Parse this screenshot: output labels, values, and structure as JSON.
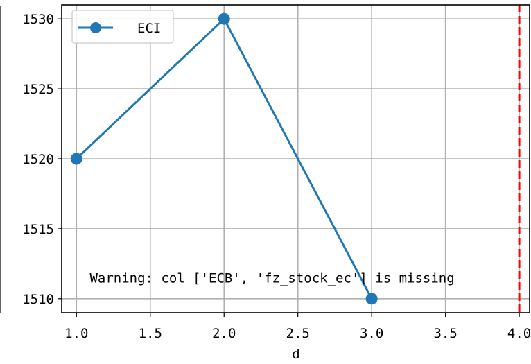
{
  "chart_data": {
    "type": "line",
    "title": "",
    "xlabel": "d",
    "ylabel": "",
    "x": [
      1.0,
      2.0,
      3.0
    ],
    "series": [
      {
        "name": "ECI",
        "values": [
          1520,
          1530,
          1510
        ],
        "color": "#1f77b4",
        "marker": "circle"
      }
    ],
    "xlim": [
      0.9,
      4.07
    ],
    "ylim": [
      1509.0,
      1531.0
    ],
    "xticks": [
      1.0,
      1.5,
      2.0,
      2.5,
      3.0,
      3.5,
      4.0
    ],
    "xtick_labels": [
      "1.0",
      "1.5",
      "2.0",
      "2.5",
      "3.0",
      "3.5",
      "4.0"
    ],
    "yticks": [
      1510,
      1515,
      1520,
      1525,
      1530
    ],
    "ytick_labels": [
      "1510",
      "1515",
      "1520",
      "1525",
      "1530"
    ],
    "grid": true,
    "legend": {
      "placement": "top-left",
      "entries": [
        "ECI"
      ]
    },
    "vline": {
      "x": 4.0,
      "color": "#ff0000",
      "style": "dashed"
    },
    "annotation": {
      "text": "Warning: col ['ECB', 'fz_stock_ec'] is missing",
      "x": 1.09,
      "y": 1511.5
    }
  }
}
